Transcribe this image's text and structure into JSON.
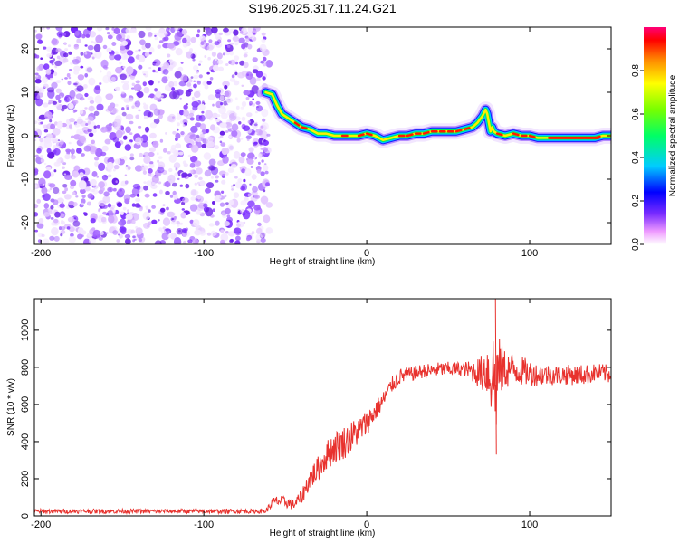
{
  "title": "S196.2025.317.11.24.G21",
  "chart_data": [
    {
      "type": "heatmap",
      "xlabel": "Height of straight line (km)",
      "ylabel": "Frequency (Hz)",
      "xlim": [
        -204,
        150
      ],
      "ylim": [
        -25,
        25
      ],
      "xticks": [
        -200,
        -100,
        0,
        100
      ],
      "yticks": [
        20,
        10,
        0,
        -10,
        -20
      ],
      "noise_region_x": [
        -204,
        -62
      ],
      "ridge": {
        "x": [
          -62,
          -58,
          -55,
          -52,
          -48,
          -44,
          -40,
          -35,
          -30,
          -25,
          -20,
          -15,
          -10,
          -5,
          0,
          5,
          10,
          15,
          20,
          25,
          30,
          35,
          40,
          45,
          50,
          55,
          60,
          65,
          68,
          71,
          73,
          74,
          75,
          76,
          77,
          78,
          80,
          85,
          90,
          95,
          100,
          105,
          110,
          115,
          120,
          125,
          130,
          135,
          140,
          145,
          150
        ],
        "frequency": [
          10,
          9.5,
          7,
          5,
          4,
          3,
          2,
          1.5,
          0.5,
          0.5,
          0,
          0,
          0,
          0,
          0.5,
          0,
          -1,
          -0.5,
          0,
          0,
          0.5,
          0.5,
          1,
          1,
          1,
          1,
          1.5,
          2,
          3,
          4.5,
          6,
          5,
          3,
          1,
          2,
          1,
          0.5,
          0,
          0.5,
          0,
          0,
          -0.5,
          -0.5,
          -0.5,
          -0.5,
          -0.5,
          -0.5,
          -0.5,
          -0.5,
          0,
          0
        ]
      },
      "colorbar": {
        "label": "Normalized spectral amplitude",
        "range": [
          0,
          1
        ],
        "ticks": [
          "0.0",
          "0.2",
          "0.4",
          "0.6",
          "0.8"
        ]
      }
    },
    {
      "type": "line",
      "xlabel": "Height of straight line (km)",
      "ylabel": "SNR (10 * v/v)",
      "xlim": [
        -204,
        150
      ],
      "ylim": [
        0,
        1170
      ],
      "xticks": [
        -200,
        -100,
        0,
        100
      ],
      "yticks": [
        0,
        200,
        400,
        600,
        800,
        1000
      ],
      "series": [
        {
          "name": "SNR",
          "color": "#e8322e",
          "x": [
            -204,
            -190,
            -170,
            -150,
            -130,
            -110,
            -90,
            -75,
            -62,
            -58,
            -55,
            -50,
            -45,
            -40,
            -35,
            -30,
            -25,
            -20,
            -15,
            -10,
            -5,
            0,
            5,
            10,
            15,
            20,
            25,
            30,
            35,
            40,
            45,
            50,
            55,
            60,
            65,
            70,
            73,
            76,
            78,
            79,
            80,
            82,
            85,
            90,
            95,
            100,
            105,
            110,
            115,
            120,
            125,
            130,
            135,
            140,
            145,
            150
          ],
          "y": [
            25,
            25,
            25,
            25,
            25,
            25,
            25,
            25,
            25,
            70,
            80,
            75,
            60,
            100,
            200,
            250,
            320,
            370,
            390,
            420,
            460,
            500,
            560,
            620,
            700,
            750,
            760,
            770,
            780,
            780,
            790,
            790,
            790,
            790,
            780,
            770,
            800,
            760,
            760,
            650,
            760,
            790,
            790,
            790,
            780,
            770,
            760,
            760,
            760,
            760,
            760,
            760,
            760,
            770,
            770,
            760
          ],
          "noise_amplitude": [
            12,
            12,
            12,
            12,
            12,
            12,
            12,
            12,
            12,
            25,
            30,
            30,
            30,
            40,
            60,
            70,
            80,
            90,
            90,
            90,
            80,
            70,
            60,
            50,
            45,
            45,
            40,
            40,
            40,
            40,
            40,
            40,
            40,
            40,
            60,
            90,
            160,
            200,
            280,
            300,
            250,
            150,
            110,
            90,
            80,
            70,
            60,
            60,
            55,
            55,
            55,
            55,
            55,
            50,
            50,
            50
          ]
        }
      ]
    }
  ]
}
